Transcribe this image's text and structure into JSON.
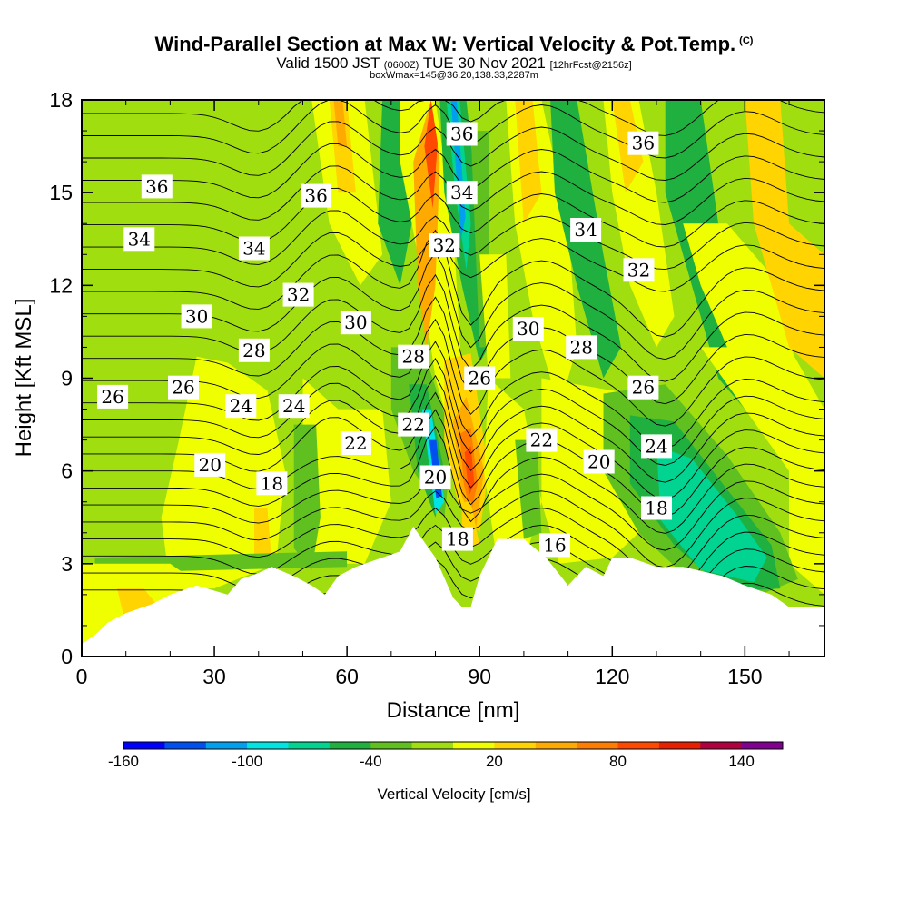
{
  "header": {
    "title": "Wind-Parallel Section at Max W: Vertical Velocity & Pot.Temp.",
    "copyright": "(C)",
    "valid_prefix": "Valid 1500 JST",
    "valid_utc": "(0600Z)",
    "valid_date": "TUE 30 Nov 2021",
    "forecast": "[12hrFcst@2156z]",
    "box_info": "boxWmax=145@36.20,138.33,2287m"
  },
  "chart_data": {
    "type": "heatmap",
    "title": "Wind-Parallel Section at Max W: Vertical Velocity & Pot.Temp.",
    "xlabel": "Distance [nm]",
    "ylabel": "Height [Kft MSL]",
    "xlim": [
      0,
      168
    ],
    "ylim": [
      0,
      18
    ],
    "xticks": [
      0,
      30,
      60,
      90,
      120,
      150
    ],
    "yticks": [
      0,
      3,
      6,
      9,
      12,
      15,
      18
    ],
    "colorbar": {
      "label": "Vertical Velocity [cm/s]",
      "tick_labels": [
        -160,
        -100,
        -40,
        20,
        80,
        140
      ],
      "colors": [
        "#0000ff",
        "#0050f0",
        "#00a0ee",
        "#00e4e4",
        "#00d490",
        "#20b040",
        "#60c020",
        "#a0de10",
        "#f0ff00",
        "#ffd400",
        "#ffaa00",
        "#ff7d00",
        "#ff4800",
        "#e82000",
        "#b00040",
        "#800090"
      ]
    },
    "terrain": [
      [
        0,
        0.4
      ],
      [
        3,
        0.7
      ],
      [
        6,
        1.1
      ],
      [
        10,
        1.4
      ],
      [
        16,
        1.7
      ],
      [
        20,
        2.0
      ],
      [
        26,
        2.3
      ],
      [
        33,
        2.0
      ],
      [
        36,
        2.5
      ],
      [
        40,
        2.7
      ],
      [
        43,
        2.9
      ],
      [
        48,
        2.6
      ],
      [
        52,
        2.3
      ],
      [
        55,
        2.0
      ],
      [
        58,
        2.6
      ],
      [
        62,
        2.9
      ],
      [
        72,
        3.4
      ],
      [
        75,
        4.2
      ],
      [
        80,
        3.2
      ],
      [
        84,
        1.9
      ],
      [
        86,
        1.6
      ],
      [
        88,
        1.6
      ],
      [
        90,
        2.6
      ],
      [
        94,
        3.8
      ],
      [
        100,
        3.8
      ],
      [
        105,
        3.2
      ],
      [
        110,
        2.3
      ],
      [
        114,
        2.9
      ],
      [
        118,
        2.6
      ],
      [
        120,
        3.2
      ],
      [
        124,
        3.2
      ],
      [
        130,
        2.9
      ],
      [
        136,
        2.9
      ],
      [
        145,
        2.6
      ],
      [
        150,
        2.3
      ],
      [
        156,
        2.0
      ],
      [
        160,
        1.6
      ],
      [
        168,
        1.6
      ]
    ],
    "contour_labels": [
      {
        "value": "36",
        "x": 17,
        "y": 15.2
      },
      {
        "value": "34",
        "x": 13,
        "y": 13.5
      },
      {
        "value": "34",
        "x": 39,
        "y": 13.2
      },
      {
        "value": "32",
        "x": 49,
        "y": 11.7
      },
      {
        "value": "30",
        "x": 26,
        "y": 11.0
      },
      {
        "value": "30",
        "x": 62,
        "y": 10.8
      },
      {
        "value": "28",
        "x": 39,
        "y": 9.9
      },
      {
        "value": "26",
        "x": 7,
        "y": 8.4
      },
      {
        "value": "26",
        "x": 23,
        "y": 8.7
      },
      {
        "value": "24",
        "x": 36,
        "y": 8.1
      },
      {
        "value": "24",
        "x": 48,
        "y": 8.1
      },
      {
        "value": "22",
        "x": 62,
        "y": 6.9
      },
      {
        "value": "20",
        "x": 29,
        "y": 6.2
      },
      {
        "value": "18",
        "x": 43,
        "y": 5.6
      },
      {
        "value": "36",
        "x": 53,
        "y": 14.9
      },
      {
        "value": "36",
        "x": 86,
        "y": 16.9
      },
      {
        "value": "34",
        "x": 86,
        "y": 15.0
      },
      {
        "value": "32",
        "x": 82,
        "y": 13.3
      },
      {
        "value": "28",
        "x": 75,
        "y": 9.7
      },
      {
        "value": "26",
        "x": 90,
        "y": 9.0
      },
      {
        "value": "22",
        "x": 75,
        "y": 7.5
      },
      {
        "value": "20",
        "x": 80,
        "y": 5.8
      },
      {
        "value": "18",
        "x": 85,
        "y": 3.8
      },
      {
        "value": "16",
        "x": 107,
        "y": 3.6
      },
      {
        "value": "22",
        "x": 104,
        "y": 7.0
      },
      {
        "value": "20",
        "x": 117,
        "y": 6.3
      },
      {
        "value": "30",
        "x": 101,
        "y": 10.6
      },
      {
        "value": "28",
        "x": 113,
        "y": 10.0
      },
      {
        "value": "34",
        "x": 114,
        "y": 13.8
      },
      {
        "value": "32",
        "x": 126,
        "y": 12.5
      },
      {
        "value": "36",
        "x": 127,
        "y": 16.6
      },
      {
        "value": "26",
        "x": 127,
        "y": 8.7
      },
      {
        "value": "24",
        "x": 130,
        "y": 6.8
      },
      {
        "value": "18",
        "x": 130,
        "y": 4.8
      }
    ]
  }
}
